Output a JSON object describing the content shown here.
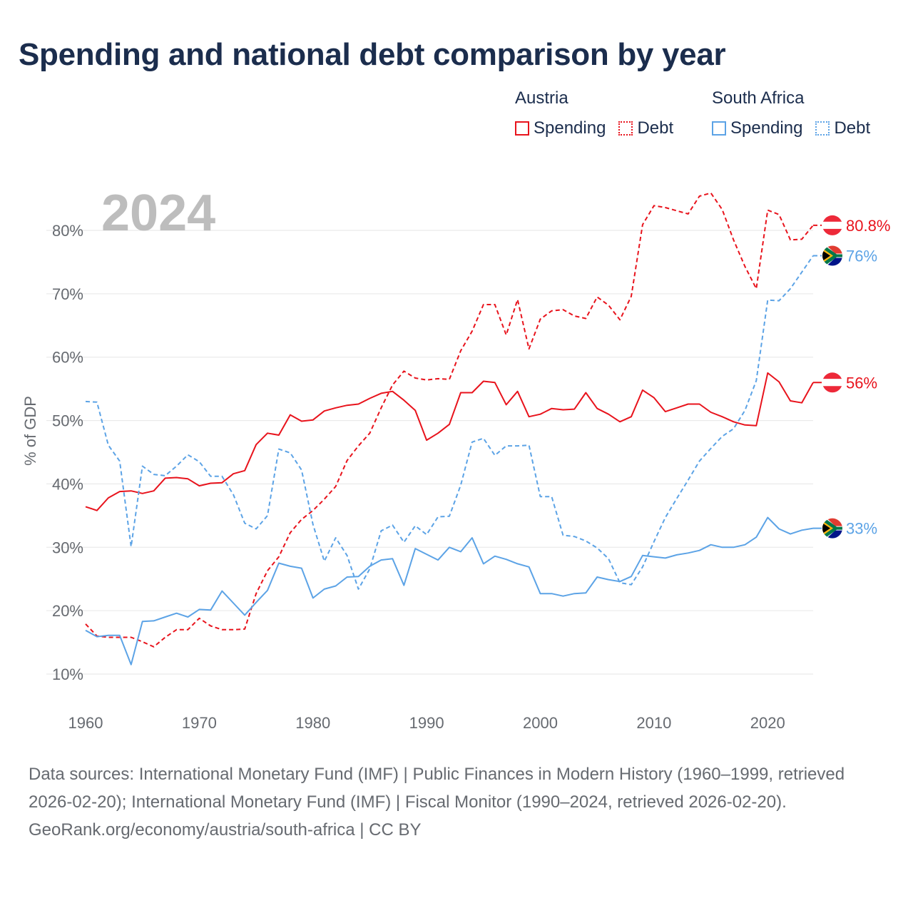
{
  "title": "Spending and national debt comparison by year",
  "legend": {
    "groups": [
      {
        "name": "Austria",
        "color": "#e8131c",
        "items": [
          "Spending",
          "Debt"
        ]
      },
      {
        "name": "South Africa",
        "color": "#5ca3e6",
        "items": [
          "Spending",
          "Debt"
        ]
      }
    ]
  },
  "footer": {
    "sources": "Data sources: International Monetary Fund (IMF) | Public Finances in Modern History (1960–1999, retrieved 2026-02-20); International Monetary Fund (IMF) | Fiscal Monitor (1990–2024, retrieved 2026-02-20).",
    "credit": "GeoRank.org/economy/austria/south-africa | CC BY"
  },
  "chart_data": {
    "type": "line",
    "year_label": "2024",
    "ylabel": "% of GDP",
    "xlabel": "",
    "xlim": [
      1960,
      2024
    ],
    "ylim": [
      10,
      80
    ],
    "x_ticks": [
      1960,
      1970,
      1980,
      1990,
      2000,
      2010,
      2020
    ],
    "y_ticks": [
      10,
      20,
      30,
      40,
      50,
      60,
      70,
      80
    ],
    "y_tick_labels": [
      "10%",
      "20%",
      "30%",
      "40%",
      "50%",
      "60%",
      "70%",
      "80%"
    ],
    "grid": true,
    "x": [
      1960,
      1961,
      1962,
      1963,
      1964,
      1965,
      1966,
      1967,
      1968,
      1969,
      1970,
      1971,
      1972,
      1973,
      1974,
      1975,
      1976,
      1977,
      1978,
      1979,
      1980,
      1981,
      1982,
      1983,
      1984,
      1985,
      1986,
      1987,
      1988,
      1989,
      1990,
      1991,
      1992,
      1993,
      1994,
      1995,
      1996,
      1997,
      1998,
      1999,
      2000,
      2001,
      2002,
      2003,
      2004,
      2005,
      2006,
      2007,
      2008,
      2009,
      2010,
      2011,
      2012,
      2013,
      2014,
      2015,
      2016,
      2017,
      2018,
      2019,
      2020,
      2021,
      2022,
      2023,
      2024
    ],
    "series": [
      {
        "name": "Austria Spending",
        "country": "Austria",
        "metric": "Spending",
        "color": "#e8131c",
        "dashed": false,
        "end_label": "56%",
        "values": [
          36.4,
          35.8,
          37.8,
          38.8,
          38.9,
          38.5,
          38.9,
          40.9,
          41.0,
          40.8,
          39.7,
          40.1,
          40.2,
          41.6,
          42.1,
          46.2,
          48.0,
          47.7,
          50.9,
          49.9,
          50.1,
          51.5,
          52.0,
          52.4,
          52.6,
          53.5,
          54.3,
          54.6,
          53.2,
          51.6,
          46.9,
          48.0,
          49.4,
          54.4,
          54.4,
          56.2,
          56.0,
          52.5,
          54.6,
          50.6,
          51.0,
          51.9,
          51.7,
          51.8,
          54.4,
          51.9,
          51.0,
          49.8,
          50.6,
          54.8,
          53.6,
          51.4,
          52.0,
          52.6,
          52.6,
          51.3,
          50.6,
          49.8,
          49.3,
          49.2,
          57.5,
          56.1,
          53.1,
          52.8,
          56.0
        ]
      },
      {
        "name": "Austria Debt",
        "country": "Austria",
        "metric": "Debt",
        "color": "#e8131c",
        "dashed": true,
        "end_label": "80.8%",
        "values": [
          17.9,
          16.0,
          15.8,
          15.8,
          15.8,
          15.1,
          14.3,
          15.8,
          17.0,
          17.0,
          18.8,
          17.6,
          17.0,
          17.0,
          17.1,
          22.7,
          26.3,
          28.5,
          32.3,
          34.4,
          35.8,
          37.6,
          39.6,
          43.7,
          46.0,
          48.0,
          52.0,
          55.6,
          57.8,
          56.7,
          56.4,
          56.6,
          56.5,
          61.0,
          64.1,
          68.3,
          68.3,
          63.5,
          69.1,
          61.3,
          66.0,
          67.3,
          67.5,
          66.5,
          66.1,
          69.5,
          68.2,
          65.9,
          69.6,
          80.9,
          83.9,
          83.6,
          83.1,
          82.6,
          85.4,
          85.9,
          83.3,
          78.5,
          74.3,
          70.8,
          83.2,
          82.5,
          78.5,
          78.6,
          80.8
        ]
      },
      {
        "name": "South Africa Spending",
        "country": "South Africa",
        "metric": "Spending",
        "color": "#5ca3e6",
        "dashed": false,
        "end_label": "33%",
        "values": [
          16.9,
          15.9,
          16.1,
          16.1,
          11.5,
          18.3,
          18.4,
          19.0,
          19.6,
          19.0,
          20.2,
          20.1,
          23.1,
          21.2,
          19.3,
          21.3,
          23.2,
          27.5,
          27.0,
          26.7,
          22.0,
          23.4,
          23.9,
          25.3,
          25.4,
          27.0,
          28.0,
          28.2,
          24.0,
          29.8,
          28.9,
          28.0,
          30.0,
          29.3,
          31.5,
          27.4,
          28.6,
          28.1,
          27.4,
          26.9,
          22.7,
          22.7,
          22.3,
          22.7,
          22.8,
          25.3,
          24.9,
          24.6,
          25.4,
          28.7,
          28.5,
          28.3,
          28.8,
          29.1,
          29.5,
          30.4,
          30.0,
          30.0,
          30.4,
          31.6,
          34.7,
          32.9,
          32.1,
          32.7,
          33.0
        ]
      },
      {
        "name": "South Africa Debt",
        "country": "South Africa",
        "metric": "Debt",
        "color": "#5ca3e6",
        "dashed": true,
        "end_label": "76%",
        "values": [
          53.0,
          52.9,
          46.1,
          43.6,
          30.1,
          42.8,
          41.5,
          41.3,
          42.8,
          44.6,
          43.5,
          41.2,
          41.2,
          38.3,
          33.8,
          32.9,
          35.0,
          45.5,
          44.9,
          42.2,
          33.6,
          27.8,
          31.5,
          28.7,
          23.4,
          26.6,
          32.6,
          33.5,
          30.8,
          33.4,
          32.0,
          34.8,
          34.9,
          39.8,
          46.6,
          47.2,
          44.5,
          46.0,
          46.0,
          46.1,
          38.0,
          38.0,
          31.9,
          31.7,
          31.0,
          29.9,
          28.2,
          24.4,
          24.1,
          26.9,
          30.9,
          34.7,
          37.7,
          40.6,
          43.6,
          45.6,
          47.5,
          48.7,
          51.6,
          56.3,
          69.0,
          68.9,
          70.8,
          73.4,
          76.0
        ]
      }
    ],
    "flags": [
      {
        "country": "Austria",
        "series": "Austria Debt"
      },
      {
        "country": "South Africa",
        "series": "South Africa Debt"
      },
      {
        "country": "Austria",
        "series": "Austria Spending"
      },
      {
        "country": "South Africa",
        "series": "South Africa Spending"
      }
    ]
  }
}
